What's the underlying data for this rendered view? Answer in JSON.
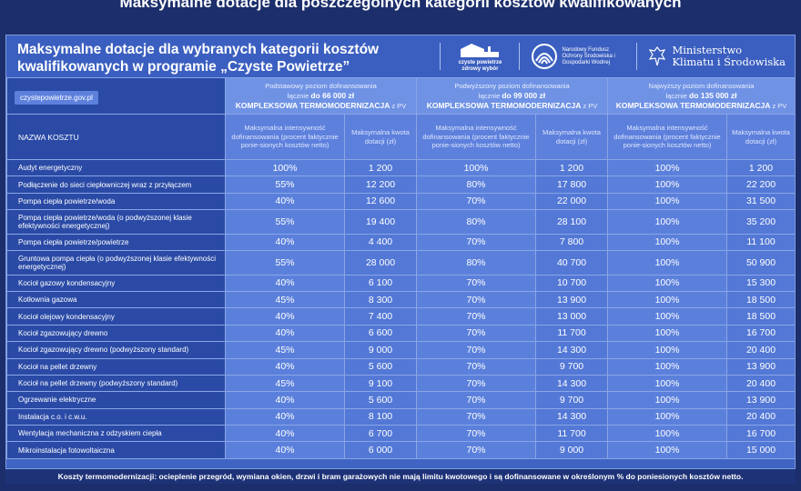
{
  "page": {
    "top_title": "Maksymalne dotacje dla poszczególnych kategorii kosztów kwalifikowanych",
    "card_title": "Maksymalne dotacje dla wybranych kategorii kosztów kwalifikowanych w programie „Czyste Powietrze”",
    "website": "czystepowietrze.gov.pl",
    "footer": "Koszty termomodernizacji: ocieplenie przegród, wymiana okien, drzwi i bram garażowych nie mają limitu kwotowego i są dofinansowane w określonym % do poniesionych kosztów netto."
  },
  "logos": {
    "cp": "czyste powietrze zdrowy wybór",
    "nfos": "Narodowy Fundusz Ochrony Środowiska i Gospodarki Wodnej",
    "ministry_line1": "Ministerstwo",
    "ministry_line2": "Klimatu i Środowiska"
  },
  "table": {
    "name_header": "NAZWA KOSZTU",
    "groups": [
      {
        "line1": "Podstawowy poziom dofinansowania",
        "line2_pre": "łącznie",
        "amount": "do 66 000 zł",
        "line3": "KOMPLEKSOWA TERMOMODERNIZACJA",
        "line3_suffix": "z PV"
      },
      {
        "line1": "Podwyższony poziom dofinansowania",
        "line2_pre": "łącznie",
        "amount": "do 99 000 zł",
        "line3": "KOMPLEKSOWA TERMOMODERNIZACJA",
        "line3_suffix": "z PV"
      },
      {
        "line1": "Najwyższy poziom dofinansowania",
        "line2_pre": "łącznie",
        "amount": "do 135 000 zł",
        "line3": "KOMPLEKSOWA TERMOMODERNIZACJA",
        "line3_suffix": "z PV"
      }
    ],
    "sub_headers": {
      "intensity": "Maksymalna intensywność dofinansowania (procent faktycznie ponie-sionych kosztów netto)",
      "amount": "Maksymalna kwota dotacji (zł)"
    },
    "rows": [
      {
        "name": "Audyt energetyczny",
        "v": [
          "100%",
          "1 200",
          "100%",
          "1 200",
          "100%",
          "1 200"
        ]
      },
      {
        "name": "Podłączenie do sieci ciepłowniczej wraz z przyłączem",
        "v": [
          "55%",
          "12 200",
          "80%",
          "17 800",
          "100%",
          "22 200"
        ]
      },
      {
        "name": "Pompa ciepła powietrze/woda",
        "v": [
          "40%",
          "12 600",
          "70%",
          "22 000",
          "100%",
          "31 500"
        ]
      },
      {
        "name": "Pompa ciepła powietrze/woda (o podwyższonej klasie efektywności energetycznej)",
        "v": [
          "55%",
          "19 400",
          "80%",
          "28 100",
          "100%",
          "35 200"
        ]
      },
      {
        "name": "Pompa ciepła powietrze/powietrze",
        "v": [
          "40%",
          "4 400",
          "70%",
          "7 800",
          "100%",
          "11 100"
        ]
      },
      {
        "name": "Gruntowa pompa ciepła (o podwyższonej klasie efektywności energetycznej)",
        "v": [
          "55%",
          "28 000",
          "80%",
          "40 700",
          "100%",
          "50 900"
        ]
      },
      {
        "name": "Kocioł gazowy kondensacyjny",
        "v": [
          "40%",
          "6 100",
          "70%",
          "10 700",
          "100%",
          "15 300"
        ]
      },
      {
        "name": "Kotłownia gazowa",
        "v": [
          "45%",
          "8 300",
          "70%",
          "13 900",
          "100%",
          "18 500"
        ]
      },
      {
        "name": "Kocioł olejowy kondensacyjny",
        "v": [
          "40%",
          "7 400",
          "70%",
          "13 000",
          "100%",
          "18 500"
        ]
      },
      {
        "name": "Kocioł zgazowujący drewno",
        "v": [
          "40%",
          "6 600",
          "70%",
          "11 700",
          "100%",
          "16 700"
        ]
      },
      {
        "name": "Kocioł zgazowujący drewno (podwyższony standard)",
        "v": [
          "45%",
          "9 000",
          "70%",
          "14 300",
          "100%",
          "20 400"
        ]
      },
      {
        "name": "Kocioł na pellet drzewny",
        "v": [
          "40%",
          "5 600",
          "70%",
          "9 700",
          "100%",
          "13 900"
        ]
      },
      {
        "name": "Kocioł na pellet drzewny (podwyższony standard)",
        "v": [
          "45%",
          "9 100",
          "70%",
          "14 300",
          "100%",
          "20 400"
        ]
      },
      {
        "name": "Ogrzewanie elektryczne",
        "v": [
          "40%",
          "5 600",
          "70%",
          "9 700",
          "100%",
          "13 900"
        ]
      },
      {
        "name": "Instalacja c.o. i c.w.u.",
        "v": [
          "40%",
          "8 100",
          "70%",
          "14 300",
          "100%",
          "20 400"
        ]
      },
      {
        "name": "Wentylacja mechaniczna z odzyskiem ciepła",
        "v": [
          "40%",
          "6 700",
          "70%",
          "11 700",
          "100%",
          "16 700"
        ]
      },
      {
        "name": "Mikroinstalacja fotowoltaiczna",
        "v": [
          "40%",
          "6 000",
          "70%",
          "9 000",
          "100%",
          "15 000"
        ]
      }
    ]
  }
}
